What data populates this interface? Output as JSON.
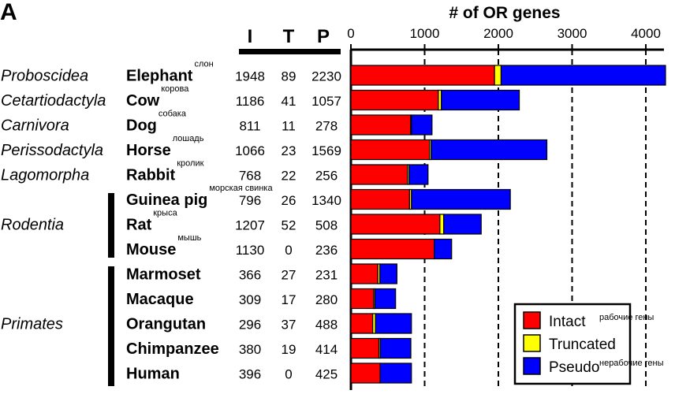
{
  "panel_label": "A",
  "column_headers": {
    "intact": "I",
    "truncated": "T",
    "pseudo": "P"
  },
  "chart_data": {
    "type": "bar",
    "stacked": true,
    "orientation": "horizontal",
    "title": "# of OR genes",
    "xlim": [
      0,
      4300
    ],
    "xticks": [
      0,
      1000,
      2000,
      3000,
      4000
    ],
    "grid": "dashed vertical at 1000, 2000, 3000, 4000",
    "legend_position": "bottom-right",
    "categories": [
      "Elephant",
      "Cow",
      "Dog",
      "Horse",
      "Rabbit",
      "Guinea pig",
      "Rat",
      "Mouse",
      "Marmoset",
      "Macaque",
      "Orangutan",
      "Chimpanzee",
      "Human"
    ],
    "series": [
      {
        "name": "Intact",
        "color": "#ff0000",
        "values": [
          1948,
          1186,
          811,
          1066,
          768,
          796,
          1207,
          1130,
          366,
          309,
          296,
          380,
          396
        ]
      },
      {
        "name": "Truncated",
        "color": "#ffff00",
        "values": [
          89,
          41,
          11,
          23,
          22,
          26,
          52,
          0,
          27,
          17,
          37,
          19,
          0
        ]
      },
      {
        "name": "Pseudo",
        "color": "#0000ff",
        "values": [
          2230,
          1057,
          278,
          1569,
          256,
          1340,
          508,
          236,
          231,
          280,
          488,
          414,
          425
        ]
      }
    ],
    "legend_notes": [
      "рабочие гены",
      "",
      "нерабочие гены"
    ]
  },
  "rows": [
    {
      "order": "Proboscidea",
      "species": "Elephant",
      "note": "слон",
      "i": "1948",
      "t": "89",
      "p": "2230"
    },
    {
      "order": "Cetartiodactyla",
      "species": "Cow",
      "note": "корова",
      "i": "1186",
      "t": "41",
      "p": "1057"
    },
    {
      "order": "Carnivora",
      "species": "Dog",
      "note": "собака",
      "i": "811",
      "t": "11",
      "p": "278"
    },
    {
      "order": "Perissodactyla",
      "species": "Horse",
      "note": "лошадь",
      "i": "1066",
      "t": "23",
      "p": "1569"
    },
    {
      "order": "Lagomorpha",
      "species": "Rabbit",
      "note": "кролик",
      "i": "768",
      "t": "22",
      "p": "256"
    },
    {
      "order": "",
      "species": "Guinea pig",
      "note": "морская свинка",
      "i": "796",
      "t": "26",
      "p": "1340"
    },
    {
      "order": "Rodentia",
      "species": "Rat",
      "note": "крыса",
      "i": "1207",
      "t": "52",
      "p": "508"
    },
    {
      "order": "",
      "species": "Mouse",
      "note": "мышь",
      "i": "1130",
      "t": "0",
      "p": "236"
    },
    {
      "order": "",
      "species": "Marmoset",
      "note": "",
      "i": "366",
      "t": "27",
      "p": "231"
    },
    {
      "order": "",
      "species": "Macaque",
      "note": "",
      "i": "309",
      "t": "17",
      "p": "280"
    },
    {
      "order": "Primates",
      "species": "Orangutan",
      "note": "",
      "i": "296",
      "t": "37",
      "p": "488"
    },
    {
      "order": "",
      "species": "Chimpanzee",
      "note": "",
      "i": "380",
      "t": "19",
      "p": "414"
    },
    {
      "order": "",
      "species": "Human",
      "note": "",
      "i": "396",
      "t": "0",
      "p": "425"
    }
  ]
}
